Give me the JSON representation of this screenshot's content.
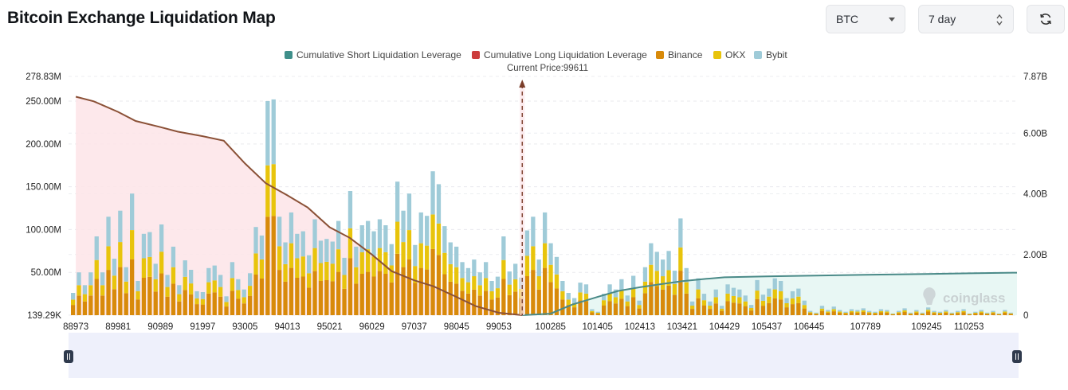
{
  "header": {
    "title": "Bitcoin Exchange Liquidation Map",
    "coin_select": "BTC",
    "period_select": "7 day"
  },
  "colors": {
    "short_line": "#4a8a88",
    "long_line": "#8b5137",
    "binance": "#d88a0a",
    "okx": "#e8c40c",
    "bybit": "#9fcbd8",
    "long_fill": "#fde4e8",
    "short_fill": "#e6f6f3",
    "slider_fill": "#eef0fb"
  },
  "chart_data": {
    "type": "bar",
    "legend": [
      {
        "name": "Cumulative Short Liquidation Leverage",
        "color": "#3f8f8a"
      },
      {
        "name": "Cumulative Long Liquidation Leverage",
        "color": "#cc3d3d"
      },
      {
        "name": "Binance",
        "color": "#d88a0a"
      },
      {
        "name": "OKX",
        "color": "#e8c40c"
      },
      {
        "name": "Bybit",
        "color": "#9fcbd8"
      }
    ],
    "current_price_label": "Current Price:99611",
    "current_price": 99611,
    "x_ticks": [
      "88973",
      "89981",
      "90989",
      "91997",
      "93005",
      "94013",
      "95021",
      "96029",
      "97037",
      "98045",
      "99053",
      "100285",
      "101405",
      "102413",
      "103421",
      "104429",
      "105437",
      "106445",
      "107789",
      "109245",
      "110253"
    ],
    "x_range": [
      88800,
      111400
    ],
    "y_left_ticks": [
      "278.83M",
      "250.00M",
      "200.00M",
      "150.00M",
      "100.00M",
      "50.00M",
      "139.29K"
    ],
    "y_left_range": [
      0,
      278.83
    ],
    "y_left_unit": "M",
    "y_right_ticks": [
      "7.87B",
      "6.00B",
      "4.00B",
      "2.00B",
      "0"
    ],
    "y_right_range": [
      0,
      7.87
    ],
    "y_right_unit": "B",
    "bars_total_m": [
      26,
      50,
      35,
      50,
      92,
      50,
      115,
      66,
      122,
      56,
      142,
      40,
      95,
      97,
      60,
      106,
      47,
      80,
      35,
      64,
      53,
      28,
      27,
      55,
      58,
      47,
      22,
      62,
      42,
      30,
      49,
      103,
      93,
      250,
      252,
      115,
      85,
      120,
      95,
      98,
      70,
      112,
      87,
      89,
      86,
      110,
      67,
      145,
      80,
      105,
      110,
      98,
      112,
      105,
      83,
      156,
      122,
      142,
      82,
      120,
      116,
      168,
      153,
      104,
      85,
      80,
      62,
      55,
      65,
      50,
      62,
      40,
      45,
      92,
      51,
      60,
      44,
      99,
      115,
      65,
      120,
      84,
      68,
      40,
      26,
      20,
      38,
      36,
      7,
      4,
      25,
      36,
      30,
      42,
      23,
      46,
      17,
      56,
      84,
      74,
      65,
      75,
      52,
      113,
      55,
      16,
      43,
      25,
      16,
      30,
      11,
      36,
      32,
      30,
      23,
      12,
      41,
      24,
      31,
      43,
      40,
      20,
      28,
      31,
      17,
      5,
      3,
      11,
      6,
      10,
      6,
      4,
      7,
      6,
      8,
      5,
      4,
      7,
      6,
      2,
      5,
      8,
      3,
      6,
      3,
      9,
      5,
      4,
      6,
      3,
      5,
      7,
      2,
      4,
      6,
      3,
      5,
      2,
      6,
      3
    ],
    "series": [
      {
        "name": "Cumulative Long Liquidation Leverage",
        "x": [
          88973,
          89400,
          89981,
          90400,
          90989,
          91400,
          91997,
          92500,
          93005,
          93500,
          94013,
          94500,
          95021,
          95500,
          96029,
          96500,
          97037,
          97500,
          98045,
          98500,
          99053,
          99611
        ],
        "y": [
          7.2,
          7.05,
          6.7,
          6.4,
          6.2,
          6.05,
          5.9,
          5.75,
          5.0,
          4.35,
          3.95,
          3.55,
          2.9,
          2.55,
          2.0,
          1.45,
          1.15,
          0.95,
          0.6,
          0.3,
          0.08,
          0
        ]
      },
      {
        "name": "Cumulative Short Liquidation Leverage",
        "x": [
          99611,
          100285,
          100800,
          101405,
          101900,
          102413,
          102900,
          103421,
          104000,
          104429,
          105437,
          106445,
          107789,
          109245,
          110253,
          111400
        ],
        "y": [
          0,
          0.05,
          0.35,
          0.6,
          0.8,
          0.92,
          1.02,
          1.12,
          1.2,
          1.25,
          1.28,
          1.3,
          1.33,
          1.36,
          1.38,
          1.4
        ]
      }
    ]
  }
}
